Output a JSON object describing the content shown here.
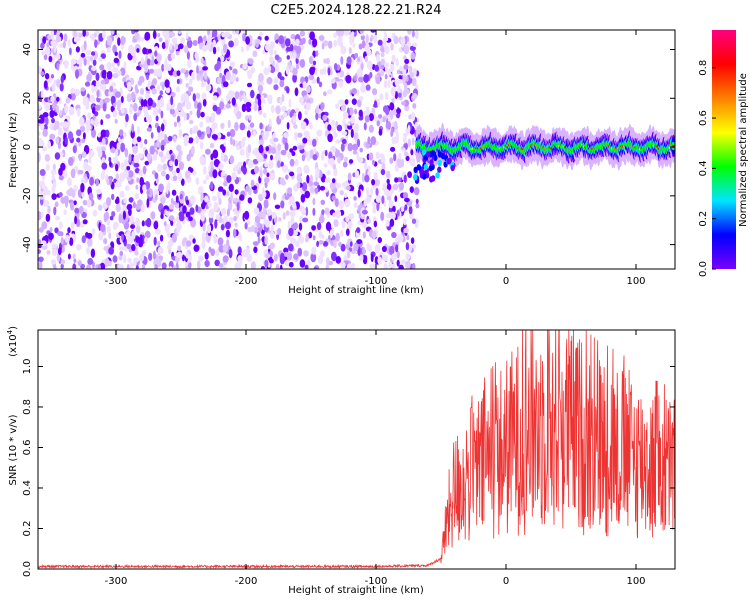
{
  "title": "C2E5.2024.128.22.21.R24",
  "chart_data": [
    {
      "type": "heatmap",
      "xlabel": "Height of straight line (km)",
      "ylabel": "Frequency (Hz)",
      "xlim": [
        -360,
        130
      ],
      "ylim": [
        -50,
        48
      ],
      "xticks": [
        -300,
        -200,
        -100,
        0,
        100
      ],
      "yticks": [
        -40,
        -20,
        0,
        20,
        40
      ],
      "description_values": {
        "noise_region_x": [
          -360,
          -68
        ],
        "signal_region_x": [
          -68,
          130
        ],
        "signal_frequency_center_hz": 0
      },
      "colorbar": {
        "label": "Normalized spectral amplitude",
        "range": [
          0,
          0.95
        ],
        "ticks": [
          0.0,
          0.2,
          0.4,
          0.6,
          0.8
        ],
        "tick_labels": [
          "0.0",
          "0.2",
          "0.4",
          "0.6",
          "0.8"
        ],
        "colors": [
          "#ffffff",
          "#7a00ff",
          "#0000ff",
          "#00e5ff",
          "#00ff00",
          "#ffff00",
          "#ff8000",
          "#ff0000",
          "#ff0080"
        ]
      }
    },
    {
      "type": "line",
      "xlabel": "Height of straight line (km)",
      "ylabel": "SNR (10 * v/v)",
      "scale_label": "(x10",
      "scale_exp": "4",
      "scale_close": ")",
      "xlim": [
        -360,
        130
      ],
      "ylim": [
        0,
        1.18
      ],
      "xticks": [
        -300,
        -200,
        -100,
        0,
        100
      ],
      "yticks": [
        0.0,
        0.2,
        0.4,
        0.6,
        0.8,
        1.0
      ],
      "ytick_labels": [
        "0.0",
        "0.2",
        "0.4",
        "0.6",
        "0.8",
        "1.0"
      ],
      "color": "#ee3333",
      "series": [
        {
          "x": [
            -360,
            -300,
            -200,
            -100,
            -60,
            -50,
            -45,
            -40,
            -30,
            -20,
            -10,
            0,
            10,
            20,
            30,
            40,
            50,
            60,
            70,
            80,
            90,
            100,
            110,
            120,
            130
          ],
          "y": [
            0.01,
            0.01,
            0.01,
            0.01,
            0.015,
            0.05,
            0.25,
            0.38,
            0.45,
            0.5,
            0.55,
            0.6,
            0.65,
            0.7,
            0.72,
            0.72,
            0.7,
            0.65,
            0.62,
            0.6,
            0.58,
            0.55,
            0.52,
            0.5,
            0.5
          ]
        }
      ]
    }
  ]
}
